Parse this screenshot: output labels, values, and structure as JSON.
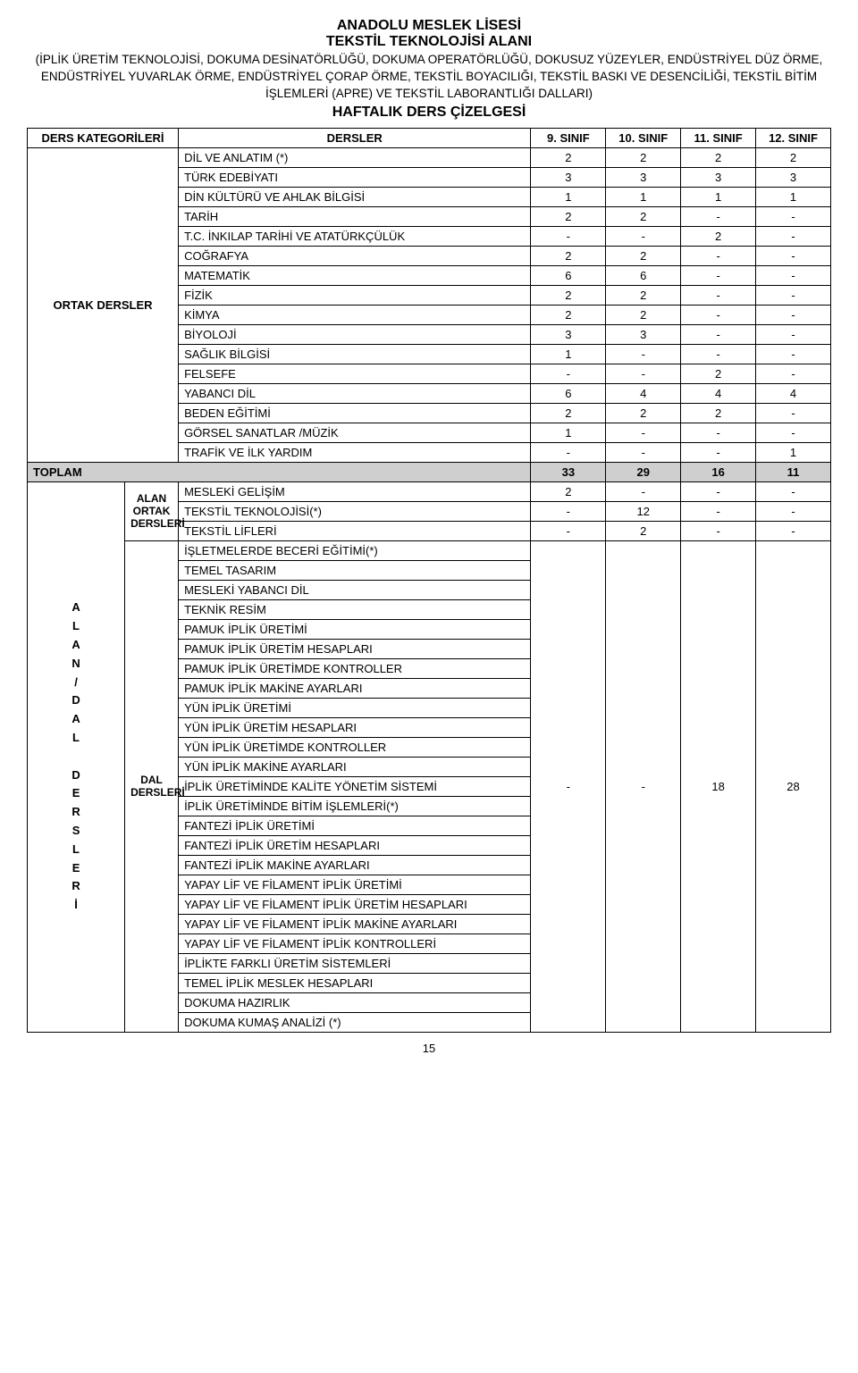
{
  "header": {
    "title": "ANADOLU MESLEK LİSESİ",
    "subtitle": "TEKSTİL TEKNOLOJİSİ ALANI",
    "paren": "(İPLİK ÜRETİM TEKNOLOJİSİ, DOKUMA DESİNATÖRLÜĞÜ, DOKUMA OPERATÖRLÜĞÜ, DOKUSUZ YÜZEYLER, ENDÜSTRİYEL DÜZ ÖRME, ENDÜSTRİYEL YUVARLAK ÖRME, ENDÜSTRİYEL ÇORAP ÖRME, TEKSTİL BOYACILIĞI, TEKSTİL BASKI VE DESENCİLİĞİ, TEKSTİL BİTİM İŞLEMLERİ (APRE) VE TEKSTİL LABORANTLIĞI DALLARI)",
    "section": "HAFTALIK DERS ÇİZELGESİ"
  },
  "columns": {
    "category": "DERS KATEGORİLERİ",
    "courses": "DERSLER",
    "g9": "9. SINIF",
    "g10": "10. SINIF",
    "g11": "11. SINIF",
    "g12": "12. SINIF"
  },
  "ortak": {
    "label": "ORTAK DERSLER",
    "rows": [
      {
        "name": "DİL VE ANLATIM (*)",
        "v": [
          "2",
          "2",
          "2",
          "2"
        ]
      },
      {
        "name": "TÜRK EDEBİYATI",
        "v": [
          "3",
          "3",
          "3",
          "3"
        ]
      },
      {
        "name": "DİN KÜLTÜRÜ VE AHLAK BİLGİSİ",
        "v": [
          "1",
          "1",
          "1",
          "1"
        ]
      },
      {
        "name": "TARİH",
        "v": [
          "2",
          "2",
          "-",
          "-"
        ]
      },
      {
        "name": "T.C. İNKILAP TARİHİ VE ATATÜRKÇÜLÜK",
        "v": [
          "-",
          "-",
          "2",
          "-"
        ]
      },
      {
        "name": "COĞRAFYA",
        "v": [
          "2",
          "2",
          "-",
          "-"
        ]
      },
      {
        "name": "MATEMATİK",
        "v": [
          "6",
          "6",
          "-",
          "-"
        ]
      },
      {
        "name": "FİZİK",
        "v": [
          "2",
          "2",
          "-",
          "-"
        ]
      },
      {
        "name": "KİMYA",
        "v": [
          "2",
          "2",
          "-",
          "-"
        ]
      },
      {
        "name": "BİYOLOJİ",
        "v": [
          "3",
          "3",
          "-",
          "-"
        ]
      },
      {
        "name": "SAĞLIK BİLGİSİ",
        "v": [
          "1",
          "-",
          "-",
          "-"
        ]
      },
      {
        "name": "FELSEFE",
        "v": [
          "-",
          "-",
          "2",
          "-"
        ]
      },
      {
        "name": "YABANCI DİL",
        "v": [
          "6",
          "4",
          "4",
          "4"
        ]
      },
      {
        "name": "BEDEN EĞİTİMİ",
        "v": [
          "2",
          "2",
          "2",
          "-"
        ]
      },
      {
        "name": "GÖRSEL SANATLAR /MÜZİK",
        "v": [
          "1",
          "-",
          "-",
          "-"
        ]
      },
      {
        "name": "TRAFİK VE İLK YARDIM",
        "v": [
          "-",
          "-",
          "-",
          "1"
        ]
      }
    ]
  },
  "toplam": {
    "label": "TOPLAM",
    "v": [
      "33",
      "29",
      "16",
      "11"
    ]
  },
  "alan_dal_label_chars": [
    "A",
    "L",
    "A",
    "N",
    "/",
    "D",
    "A",
    "L",
    "",
    "D",
    "E",
    "R",
    "S",
    "L",
    "E",
    "R",
    "İ"
  ],
  "alan_ortak": {
    "label": "ALAN ORTAK DERSLERİ",
    "rows": [
      {
        "name": "MESLEKİ GELİŞİM",
        "v": [
          "2",
          "-",
          "-",
          "-"
        ]
      },
      {
        "name": "TEKSTİL TEKNOLOJİSİ(*)",
        "v": [
          "-",
          "12",
          "-",
          "-"
        ]
      },
      {
        "name": "TEKSTİL LİFLERİ",
        "v": [
          "-",
          "2",
          "-",
          "-"
        ]
      }
    ]
  },
  "dal": {
    "label": "DAL DERSLERİ",
    "merged_v": [
      "-",
      "-",
      "18",
      "28"
    ],
    "rows": [
      "İŞLETMELERDE BECERİ EĞİTİMİ(*)",
      "TEMEL TASARIM",
      "MESLEKİ YABANCI DİL",
      "TEKNİK RESİM",
      "PAMUK İPLİK ÜRETİMİ",
      "PAMUK İPLİK ÜRETİM HESAPLARI",
      "PAMUK İPLİK ÜRETİMDE KONTROLLER",
      "PAMUK İPLİK MAKİNE AYARLARI",
      "YÜN İPLİK ÜRETİMİ",
      "YÜN İPLİK ÜRETİM HESAPLARI",
      "YÜN İPLİK ÜRETİMDE KONTROLLER",
      "YÜN İPLİK MAKİNE AYARLARI",
      "İPLİK ÜRETİMİNDE KALİTE YÖNETİM SİSTEMİ",
      "İPLİK ÜRETİMİNDE BİTİM İŞLEMLERİ(*)",
      "FANTEZİ İPLİK ÜRETİMİ",
      "FANTEZİ İPLİK ÜRETİM HESAPLARI",
      "FANTEZİ İPLİK MAKİNE AYARLARI",
      "YAPAY LİF VE FİLAMENT İPLİK ÜRETİMİ",
      "YAPAY LİF VE FİLAMENT İPLİK ÜRETİM HESAPLARI",
      "YAPAY LİF VE FİLAMENT İPLİK MAKİNE AYARLARI",
      "YAPAY LİF VE FİLAMENT İPLİK KONTROLLERİ",
      "İPLİKTE FARKLI ÜRETİM SİSTEMLERİ",
      "TEMEL İPLİK MESLEK HESAPLARI",
      "DOKUMA HAZIRLIK",
      "DOKUMA KUMAŞ ANALİZİ (*)"
    ]
  },
  "page_number": "15",
  "colors": {
    "total_bg": "#cfcfcf",
    "border": "#000000",
    "text": "#000000",
    "background": "#ffffff"
  }
}
